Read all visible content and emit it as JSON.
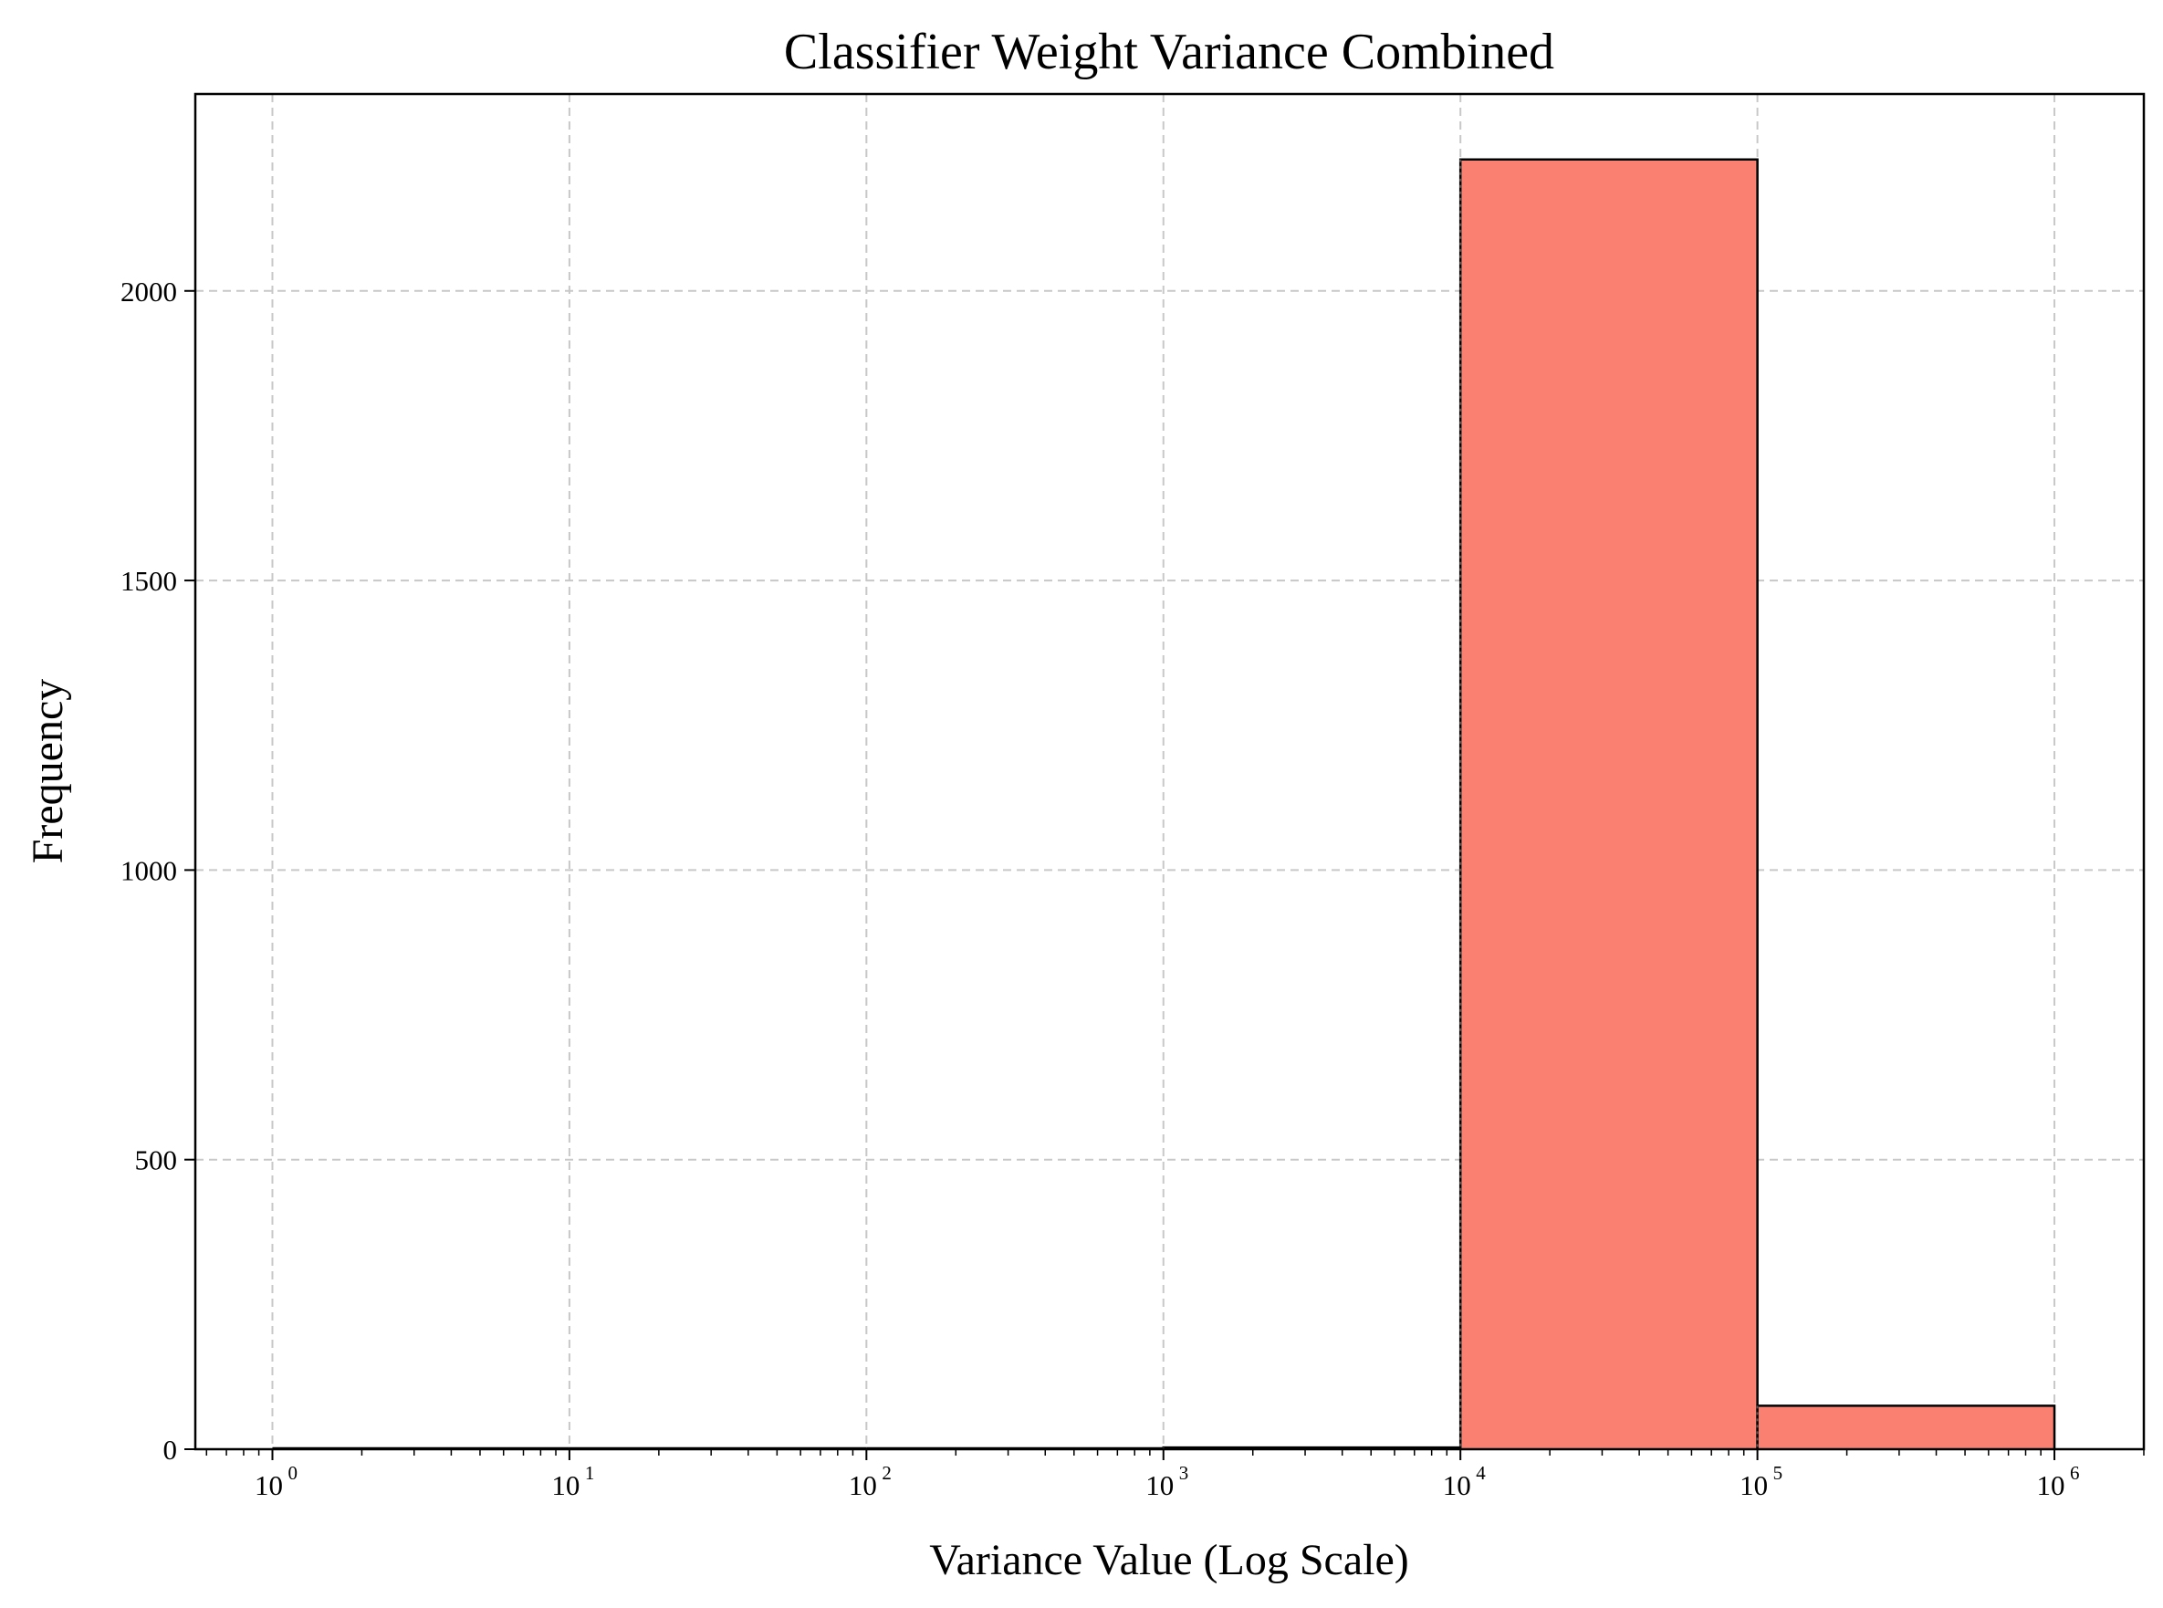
{
  "chart_data": {
    "type": "bar",
    "title": "Classifier Weight Variance Combined",
    "xlabel": "Variance Value (Log Scale)",
    "ylabel": "Frequency",
    "x_scale": "log",
    "xlim": [
      0.55,
      2000000
    ],
    "ylim": [
      0,
      2340
    ],
    "grid": true,
    "bar_color": "#fa8072",
    "edge_color": "#000000",
    "grid_color": "#c8c8c8",
    "x_ticks": [
      {
        "base": "10",
        "exp": "0",
        "value": 1
      },
      {
        "base": "10",
        "exp": "1",
        "value": 10
      },
      {
        "base": "10",
        "exp": "2",
        "value": 100
      },
      {
        "base": "10",
        "exp": "3",
        "value": 1000
      },
      {
        "base": "10",
        "exp": "4",
        "value": 10000
      },
      {
        "base": "10",
        "exp": "5",
        "value": 100000
      },
      {
        "base": "10",
        "exp": "6",
        "value": 1000000
      }
    ],
    "y_ticks": [
      {
        "label": "0",
        "value": 0
      },
      {
        "label": "500",
        "value": 500
      },
      {
        "label": "1000",
        "value": 1000
      },
      {
        "label": "1500",
        "value": 1500
      },
      {
        "label": "2000",
        "value": 2000
      }
    ],
    "bins": [
      {
        "start": 1,
        "end": 10,
        "count": 0
      },
      {
        "start": 10,
        "end": 100,
        "count": 0
      },
      {
        "start": 100,
        "end": 1000,
        "count": 0
      },
      {
        "start": 1000,
        "end": 10000,
        "count": 3
      },
      {
        "start": 10000,
        "end": 100000,
        "count": 2227
      },
      {
        "start": 100000,
        "end": 1000000,
        "count": 75
      }
    ]
  }
}
